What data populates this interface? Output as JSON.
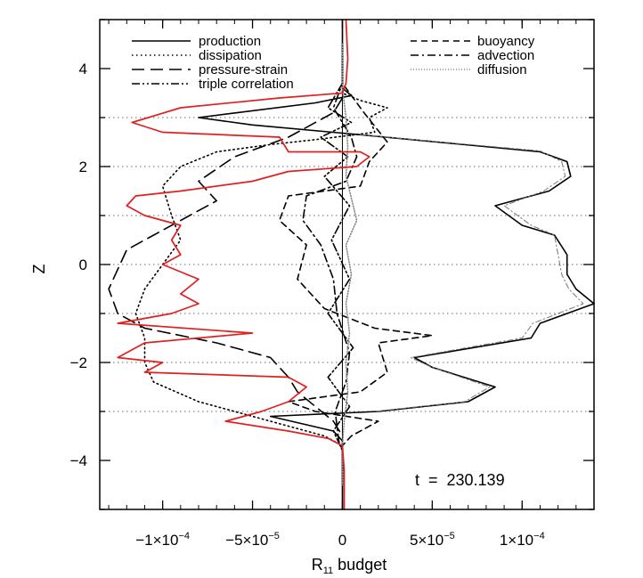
{
  "chart_data": {
    "type": "line",
    "orientation": "vertical-profile",
    "xlabel": "R",
    "xlabel_subscript": "11",
    "xlabel_suffix": " budget",
    "ylabel": "Z",
    "xlim": [
      -0.000135,
      0.00014
    ],
    "ylim": [
      -5,
      5
    ],
    "x_ticks": [
      {
        "value": -0.0001,
        "label": "−1×10",
        "exp": "−4"
      },
      {
        "value": -5e-05,
        "label": "−5×10",
        "exp": "−5"
      },
      {
        "value": 0,
        "label": "0",
        "exp": ""
      },
      {
        "value": 5e-05,
        "label": "5×10",
        "exp": "−5"
      },
      {
        "value": 0.0001,
        "label": "1×10",
        "exp": "−4"
      }
    ],
    "y_ticks": [
      {
        "value": -4,
        "label": "−4"
      },
      {
        "value": -2,
        "label": "−2"
      },
      {
        "value": 0,
        "label": "0"
      },
      {
        "value": 2,
        "label": "2"
      },
      {
        "value": 4,
        "label": "4"
      }
    ],
    "dotted_gridlines_y": [
      3,
      2,
      1,
      0,
      -1,
      -2,
      -3
    ],
    "annotation": "t  =  230.139",
    "legend": {
      "placement": "top",
      "left_column": [
        "production",
        "dissipation",
        "pressure-strain",
        "triple correlation"
      ],
      "right_column": [
        "buoyancy",
        "advection",
        "diffusion"
      ]
    },
    "colors": {
      "axes": "#000000",
      "total": "#e02020",
      "grid": "#888888"
    },
    "series": [
      {
        "name": "production",
        "style": "solid",
        "color": "#000000",
        "points": [
          [
            0,
            5
          ],
          [
            0,
            4
          ],
          [
            0,
            3.6
          ],
          [
            5e-06,
            3.45
          ],
          [
            -1.5e-05,
            3.3
          ],
          [
            -8e-05,
            3.0
          ],
          [
            -5e-05,
            2.85
          ],
          [
            1e-05,
            2.65
          ],
          [
            0.00011,
            2.3
          ],
          [
            0.000125,
            2.1
          ],
          [
            0.000127,
            1.8
          ],
          [
            0.000115,
            1.5
          ],
          [
            8.5e-05,
            1.2
          ],
          [
            0.0001,
            0.8
          ],
          [
            0.000118,
            0.6
          ],
          [
            0.000125,
            0.2
          ],
          [
            0.000125,
            -0.2
          ],
          [
            0.00013,
            -0.5
          ],
          [
            0.00014,
            -0.8
          ],
          [
            0.000125,
            -1.0
          ],
          [
            0.00011,
            -1.2
          ],
          [
            0.000105,
            -1.5
          ],
          [
            4e-05,
            -1.9
          ],
          [
            5e-05,
            -2.1
          ],
          [
            8.5e-05,
            -2.5
          ],
          [
            7e-05,
            -2.8
          ],
          [
            2e-05,
            -3.0
          ],
          [
            -4e-05,
            -3.1
          ],
          [
            -5e-06,
            -3.4
          ],
          [
            0,
            -3.6
          ],
          [
            0,
            -5
          ]
        ]
      },
      {
        "name": "dissipation",
        "style": "dotted",
        "color": "#000000",
        "points": [
          [
            0,
            4
          ],
          [
            0,
            3.5
          ],
          [
            1e-05,
            3.35
          ],
          [
            2.5e-05,
            3.2
          ],
          [
            1.5e-05,
            3.0
          ],
          [
            1.8e-05,
            2.7
          ],
          [
            -1.5e-05,
            2.55
          ],
          [
            -4e-05,
            2.45
          ],
          [
            -7e-05,
            2.3
          ],
          [
            -9e-05,
            2.0
          ],
          [
            -0.0001,
            1.6
          ],
          [
            -9.5e-05,
            1.0
          ],
          [
            -9e-05,
            0.5
          ],
          [
            -0.0001,
            0.0
          ],
          [
            -0.00011,
            -0.5
          ],
          [
            -0.000115,
            -1.0
          ],
          [
            -0.00011,
            -1.5
          ],
          [
            -0.00011,
            -2.0
          ],
          [
            -0.000105,
            -2.4
          ],
          [
            -8e-05,
            -2.8
          ],
          [
            -4e-05,
            -3.2
          ],
          [
            -1e-05,
            -3.5
          ],
          [
            0,
            -3.7
          ],
          [
            0,
            -4
          ]
        ]
      },
      {
        "name": "pressure-strain",
        "style": "longdash",
        "color": "#000000",
        "points": [
          [
            0,
            3.4
          ],
          [
            -5e-06,
            3.1
          ],
          [
            -3e-05,
            2.6
          ],
          [
            -6e-05,
            2.2
          ],
          [
            -8e-05,
            1.7
          ],
          [
            -7e-05,
            1.3
          ],
          [
            -8.5e-05,
            1.0
          ],
          [
            -0.00012,
            0.3
          ],
          [
            -0.00013,
            -0.5
          ],
          [
            -0.000125,
            -1.0
          ],
          [
            -0.00011,
            -1.3
          ],
          [
            -7e-05,
            -1.6
          ],
          [
            -4e-05,
            -1.9
          ],
          [
            -3e-05,
            -2.3
          ],
          [
            -2.5e-05,
            -2.6
          ],
          [
            -1.5e-05,
            -2.9
          ],
          [
            -5e-06,
            -3.2
          ],
          [
            0,
            -3.5
          ]
        ]
      },
      {
        "name": "triple correlation",
        "style": "dashdotdot",
        "color": "#000000",
        "points": [
          [
            0,
            4.5
          ],
          [
            0,
            3.7
          ],
          [
            -8e-06,
            3.2
          ],
          [
            5e-06,
            2.9
          ],
          [
            -1.2e-05,
            2.6
          ],
          [
            3e-06,
            2.2
          ],
          [
            -1e-05,
            1.8
          ],
          [
            4e-06,
            1.2
          ],
          [
            -6e-06,
            0.5
          ],
          [
            4e-06,
            -0.3
          ],
          [
            -8e-06,
            -1.0
          ],
          [
            6e-06,
            -1.7
          ],
          [
            -8e-06,
            -2.3
          ],
          [
            4e-06,
            -2.9
          ],
          [
            -5e-06,
            -3.4
          ],
          [
            0,
            -3.8
          ],
          [
            0,
            -4.5
          ]
        ]
      },
      {
        "name": "buoyancy",
        "style": "dash",
        "color": "#000000",
        "points": [
          [
            0,
            4.5
          ],
          [
            0,
            3.7
          ],
          [
            1.2e-05,
            3.1
          ],
          [
            2.5e-05,
            2.5
          ],
          [
            1.5e-05,
            2.1
          ],
          [
            1e-05,
            1.6
          ],
          [
            -3e-05,
            1.4
          ],
          [
            -3.5e-05,
            0.9
          ],
          [
            -2e-05,
            0.4
          ],
          [
            -2.5e-05,
            -0.3
          ],
          [
            -1e-05,
            -0.9
          ],
          [
            1.8e-05,
            -1.3
          ],
          [
            5e-05,
            -1.45
          ],
          [
            2e-05,
            -1.6
          ],
          [
            2.5e-05,
            -2.2
          ],
          [
            1e-05,
            -2.6
          ],
          [
            -3e-05,
            -2.8
          ],
          [
            -1.5e-05,
            -3.0
          ],
          [
            2e-05,
            -3.2
          ],
          [
            5e-06,
            -3.5
          ],
          [
            0,
            -3.7
          ],
          [
            0,
            -4.5
          ]
        ]
      },
      {
        "name": "advection",
        "style": "dashdot",
        "color": "#000000",
        "points": [
          [
            0,
            4.5
          ],
          [
            0,
            3.7
          ],
          [
            -5e-06,
            3.2
          ],
          [
            5e-06,
            2.6
          ],
          [
            8e-06,
            2.2
          ],
          [
            2e-06,
            1.7
          ],
          [
            -2e-05,
            1.4
          ],
          [
            -2.2e-05,
            0.9
          ],
          [
            -1.2e-05,
            0.4
          ],
          [
            -5e-06,
            -0.3
          ],
          [
            -3e-06,
            -1.0
          ],
          [
            4e-06,
            -1.8
          ],
          [
            2e-06,
            -2.4
          ],
          [
            -4e-06,
            -3.0
          ],
          [
            -2e-06,
            -3.6
          ],
          [
            0,
            -3.8
          ],
          [
            0,
            -4.5
          ]
        ]
      },
      {
        "name": "diffusion",
        "style": "finedot",
        "color": "#888888",
        "points": [
          [
            0,
            4.5
          ],
          [
            0,
            3.6
          ],
          [
            2e-06,
            3.0
          ],
          [
            3e-06,
            2.4
          ],
          [
            2e-06,
            1.8
          ],
          [
            6e-06,
            1.2
          ],
          [
            8e-06,
            0.9
          ],
          [
            2e-06,
            0.4
          ],
          [
            5e-06,
            -0.2
          ],
          [
            2e-06,
            -0.8
          ],
          [
            4e-06,
            -1.4
          ],
          [
            2e-06,
            -2.0
          ],
          [
            3e-06,
            -2.6
          ],
          [
            1e-06,
            -3.2
          ],
          [
            0,
            -3.7
          ],
          [
            0,
            -4.5
          ]
        ]
      },
      {
        "name": "",
        "style": "thin-dashdot",
        "color": "#777777",
        "points": [
          [
            1e-05,
            2.65
          ],
          [
            0.00011,
            2.32
          ],
          [
            0.000122,
            2.1
          ],
          [
            0.000124,
            1.8
          ],
          [
            0.000112,
            1.5
          ],
          [
            9e-05,
            1.2
          ],
          [
            0.000105,
            0.8
          ],
          [
            0.000118,
            0.6
          ],
          [
            0.00012,
            0.2
          ],
          [
            0.000122,
            -0.2
          ],
          [
            0.000126,
            -0.5
          ],
          [
            0.000134,
            -0.8
          ],
          [
            0.00012,
            -1.0
          ],
          [
            0.000106,
            -1.2
          ],
          [
            0.0001,
            -1.5
          ],
          [
            3.8e-05,
            -1.9
          ],
          [
            5e-05,
            -2.1
          ],
          [
            8.2e-05,
            -2.5
          ],
          [
            6.8e-05,
            -2.8
          ],
          [
            1.8e-05,
            -3.0
          ]
        ]
      },
      {
        "name": "",
        "style": "solid",
        "color": "#e02020",
        "points": [
          [
            2e-06,
            5
          ],
          [
            3e-06,
            4.2
          ],
          [
            2e-06,
            3.7
          ],
          [
            0,
            3.5
          ],
          [
            -3.5e-05,
            3.4
          ],
          [
            -9e-05,
            3.2
          ],
          [
            -0.000117,
            2.9
          ],
          [
            -0.0001,
            2.7
          ],
          [
            -3.5e-05,
            2.6
          ],
          [
            -3e-05,
            2.3
          ],
          [
            1e-05,
            2.3
          ],
          [
            1.5e-05,
            2.2
          ],
          [
            8e-06,
            2.0
          ],
          [
            -3e-05,
            1.9
          ],
          [
            -5e-05,
            1.7
          ],
          [
            -9e-05,
            1.5
          ],
          [
            -0.000115,
            1.4
          ],
          [
            -0.00012,
            1.2
          ],
          [
            -0.00011,
            1.0
          ],
          [
            -9e-05,
            0.8
          ],
          [
            -9.5e-05,
            0.5
          ],
          [
            -9e-05,
            0.2
          ],
          [
            -0.0001,
            0.0
          ],
          [
            -8e-05,
            -0.3
          ],
          [
            -9e-05,
            -0.6
          ],
          [
            -8e-05,
            -0.8
          ],
          [
            -9.5e-05,
            -1.0
          ],
          [
            -0.000125,
            -1.2
          ],
          [
            -5e-05,
            -1.4
          ],
          [
            -0.00011,
            -1.6
          ],
          [
            -0.000125,
            -1.9
          ],
          [
            -0.0001,
            -2.0
          ],
          [
            -0.00011,
            -2.2
          ],
          [
            -3e-05,
            -2.3
          ],
          [
            -2e-05,
            -2.5
          ],
          [
            -3e-05,
            -2.8
          ],
          [
            -4.5e-05,
            -3.0
          ],
          [
            -6.5e-05,
            -3.2
          ],
          [
            -3e-05,
            -3.4
          ],
          [
            -8e-06,
            -3.55
          ],
          [
            0,
            -3.7
          ],
          [
            1e-06,
            -4.2
          ],
          [
            1e-06,
            -5
          ]
        ]
      }
    ]
  }
}
